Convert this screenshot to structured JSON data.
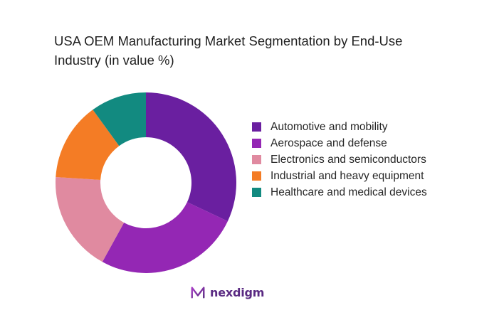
{
  "chart_data": {
    "type": "pie",
    "variant": "donut",
    "title": "USA OEM Manufacturing Market Segmentation by End-Use Industry (in value %)",
    "categories": [
      "Automotive and mobility",
      "Aerospace and defense",
      "Electronics and semiconductors",
      "Industrial and heavy equipment",
      "Healthcare and medical devices"
    ],
    "values": [
      32,
      26,
      18,
      14,
      10
    ],
    "colors": [
      "#6a1fa0",
      "#9427b4",
      "#e08aa0",
      "#f47c25",
      "#128a80"
    ],
    "legend_position": "right",
    "start_angle": "12 o'clock",
    "direction": "clockwise"
  },
  "brand": {
    "name": "nexdigm",
    "color": "#5a2a82",
    "icon": "nexdigm-logo-icon"
  }
}
